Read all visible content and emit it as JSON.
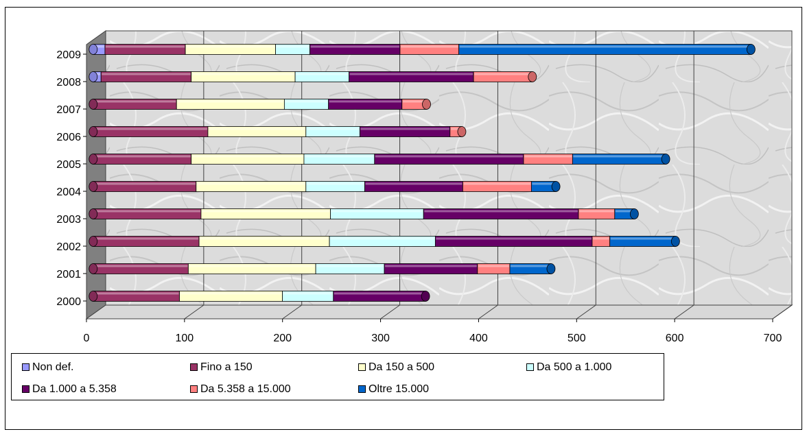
{
  "chart_data": {
    "type": "bar",
    "orientation": "horizontal",
    "stacked": true,
    "three_d": true,
    "categories": [
      "2000",
      "2001",
      "2002",
      "2003",
      "2004",
      "2005",
      "2006",
      "2007",
      "2008",
      "2009"
    ],
    "xlim": [
      0,
      700
    ],
    "xticks": [
      "0",
      "100",
      "200",
      "300",
      "400",
      "500",
      "600",
      "700"
    ],
    "grid": true,
    "legend_position": "bottom",
    "series": [
      {
        "name": "Non def.",
        "color": "#9999ff",
        "values": [
          0,
          0,
          0,
          0,
          0,
          0,
          0,
          0,
          8,
          12
        ]
      },
      {
        "name": "Fino a 150",
        "color": "#993366",
        "values": [
          88,
          97,
          108,
          110,
          105,
          100,
          117,
          85,
          92,
          82
        ]
      },
      {
        "name": "Da 150 a 500",
        "color": "#ffffcc",
        "values": [
          105,
          130,
          133,
          132,
          112,
          115,
          100,
          110,
          106,
          92
        ]
      },
      {
        "name": "Da 500 a 1.000",
        "color": "#ccffff",
        "values": [
          52,
          70,
          108,
          95,
          60,
          72,
          55,
          45,
          55,
          35
        ]
      },
      {
        "name": "Da 1.000 a 5.358",
        "color": "#660066",
        "values": [
          94,
          95,
          160,
          158,
          100,
          152,
          92,
          75,
          127,
          92
        ]
      },
      {
        "name": "Da 5.358 a 15.000",
        "color": "#ff8080",
        "values": [
          0,
          33,
          18,
          37,
          70,
          50,
          12,
          25,
          60,
          60
        ]
      },
      {
        "name": "Oltre 15.000",
        "color": "#0066cc",
        "values": [
          0,
          42,
          67,
          20,
          25,
          95,
          0,
          0,
          0,
          298
        ]
      }
    ]
  }
}
